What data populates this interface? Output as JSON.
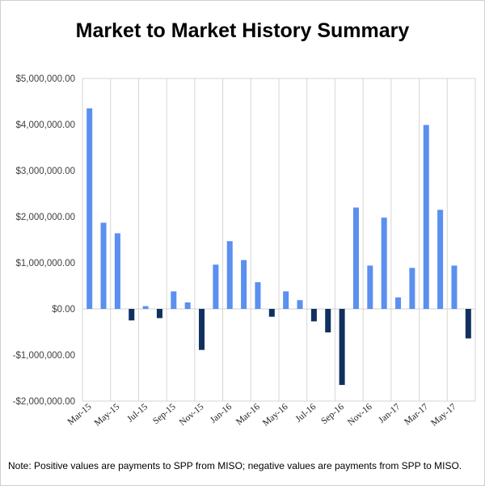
{
  "chart_data": {
    "type": "bar",
    "title": "Market to Market History Summary",
    "xlabel": "",
    "ylabel": "",
    "ylim": [
      -2000000,
      5000000
    ],
    "y_ticks": [
      {
        "value": 5000000,
        "label": "$5,000,000.00"
      },
      {
        "value": 4000000,
        "label": "$4,000,000.00"
      },
      {
        "value": 3000000,
        "label": "$3,000,000.00"
      },
      {
        "value": 2000000,
        "label": "$2,000,000.00"
      },
      {
        "value": 1000000,
        "label": "$1,000,000.00"
      },
      {
        "value": 0,
        "label": "$0.00"
      },
      {
        "value": -1000000,
        "label": "-$1,000,000.00"
      },
      {
        "value": -2000000,
        "label": "-$2,000,000.00"
      }
    ],
    "grid": "vertical",
    "categories": [
      "Mar-15",
      "Apr-15",
      "May-15",
      "Jun-15",
      "Jul-15",
      "Aug-15",
      "Sep-15",
      "Oct-15",
      "Nov-15",
      "Dec-15",
      "Jan-16",
      "Feb-16",
      "Mar-16",
      "Apr-16",
      "May-16",
      "Jun-16",
      "Jul-16",
      "Aug-16",
      "Sep-16",
      "Oct-16",
      "Nov-16",
      "Dec-16",
      "Jan-17",
      "Feb-17",
      "Mar-17",
      "Apr-17",
      "May-17",
      "Jun-17"
    ],
    "x_tick_labels": [
      "Mar-15",
      "May-15",
      "Jul-15",
      "Sep-15",
      "Nov-15",
      "Jan-16",
      "Mar-16",
      "May-16",
      "Jul-16",
      "Sep-16",
      "Nov-16",
      "Jan-17",
      "Mar-17",
      "May-17"
    ],
    "values": [
      4350000,
      1870000,
      1640000,
      -250000,
      60000,
      -200000,
      380000,
      140000,
      -890000,
      960000,
      1470000,
      1060000,
      580000,
      -170000,
      380000,
      190000,
      -270000,
      -510000,
      -1650000,
      2200000,
      940000,
      1980000,
      250000,
      890000,
      3990000,
      2150000,
      940000,
      -640000
    ],
    "positive_color": "#5b8ff0",
    "negative_color": "#10305f"
  },
  "note": "Note:  Positive values are payments to SPP from MISO; negative values are payments from SPP to MISO."
}
